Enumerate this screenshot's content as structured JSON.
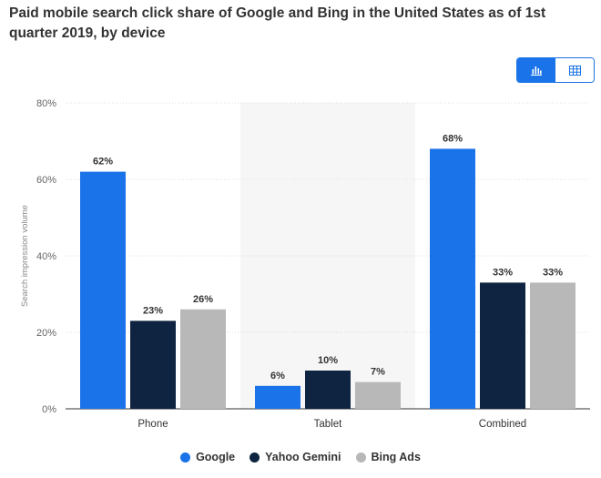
{
  "title": "Paid mobile search click share of Google and Bing in the United States as of 1st quarter 2019, by device",
  "toolbar": {
    "chart_icon": "bar-chart-icon",
    "table_icon": "table-icon"
  },
  "colors": {
    "accent": "#1a73e8"
  },
  "chart_data": {
    "type": "bar",
    "categories": [
      "Phone",
      "Tablet",
      "Combined"
    ],
    "series": [
      {
        "name": "Google",
        "values": [
          62,
          6,
          68
        ],
        "color": "#1a73e8"
      },
      {
        "name": "Yahoo Gemini",
        "values": [
          23,
          10,
          33
        ],
        "color": "#0e2440"
      },
      {
        "name": "Bing Ads",
        "values": [
          26,
          7,
          33
        ],
        "color": "#b8b8b8"
      }
    ],
    "ylabel": "Search impression volume",
    "xlabel": "",
    "ylim": [
      0,
      80
    ],
    "yticks": [
      0,
      20,
      40,
      60,
      80
    ],
    "ytick_labels": [
      "0%",
      "20%",
      "40%",
      "60%",
      "80%"
    ],
    "value_labels": [
      [
        "62%",
        "6%",
        "68%"
      ],
      [
        "23%",
        "10%",
        "33%"
      ],
      [
        "26%",
        "7%",
        "33%"
      ]
    ],
    "highlighted_category": "Tablet",
    "grid": true,
    "legend_position": "bottom"
  }
}
